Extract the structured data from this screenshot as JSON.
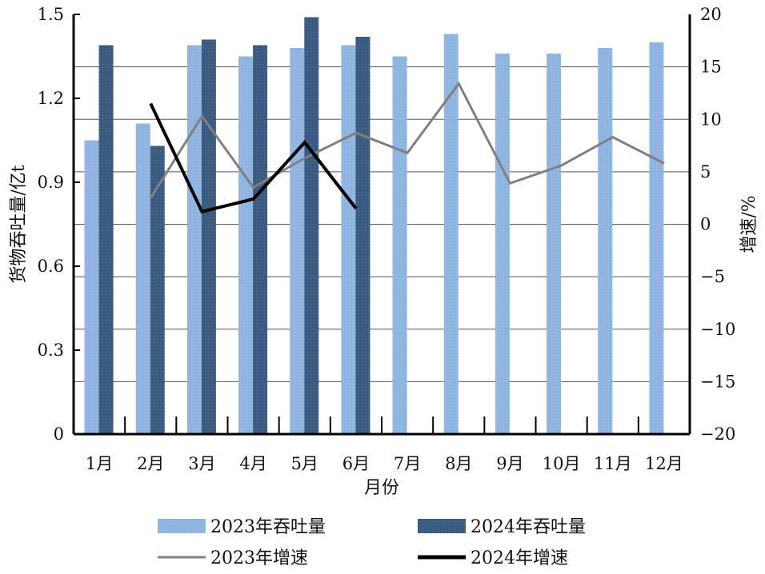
{
  "chart_data": {
    "type": "bar",
    "categories": [
      "1月",
      "2月",
      "3月",
      "4月",
      "5月",
      "6月",
      "7月",
      "8月",
      "9月",
      "10月",
      "11月",
      "12月"
    ],
    "series": [
      {
        "name": "2023年吞吐量",
        "type": "bar",
        "axis": "left",
        "color": "#8fb4e0",
        "values": [
          1.05,
          1.11,
          1.39,
          1.35,
          1.38,
          1.39,
          1.35,
          1.43,
          1.36,
          1.36,
          1.38,
          1.4
        ]
      },
      {
        "name": "2024年吞吐量",
        "type": "bar",
        "axis": "left",
        "color": "#3a5a80",
        "values": [
          1.39,
          1.03,
          1.41,
          1.39,
          1.49,
          1.42,
          null,
          null,
          null,
          null,
          null,
          null
        ]
      },
      {
        "name": "2023年增速",
        "type": "line",
        "axis": "right",
        "color": "#808080",
        "values": [
          null,
          2.5,
          10.3,
          3.5,
          6.3,
          8.7,
          6.8,
          13.4,
          3.9,
          5.6,
          8.3,
          5.8
        ]
      },
      {
        "name": "2024年增速",
        "type": "line",
        "axis": "right",
        "color": "#000000",
        "values": [
          null,
          11.5,
          1.2,
          2.4,
          7.8,
          1.5,
          null,
          null,
          null,
          null,
          null,
          null
        ]
      }
    ],
    "xlabel": "月份",
    "ylabel": "货物吞吐量/亿t",
    "y2label": "增速/%",
    "ylim": [
      0,
      1.5
    ],
    "yticks": [
      "0",
      "0.3",
      "0.6",
      "0.9",
      "1.2",
      "1.5"
    ],
    "y2lim": [
      -20,
      20
    ],
    "y2ticks": [
      "−20",
      "−15",
      "−10",
      "−5",
      "0",
      "5",
      "10",
      "15",
      "20"
    ],
    "grid": true,
    "legend_position": "bottom"
  }
}
